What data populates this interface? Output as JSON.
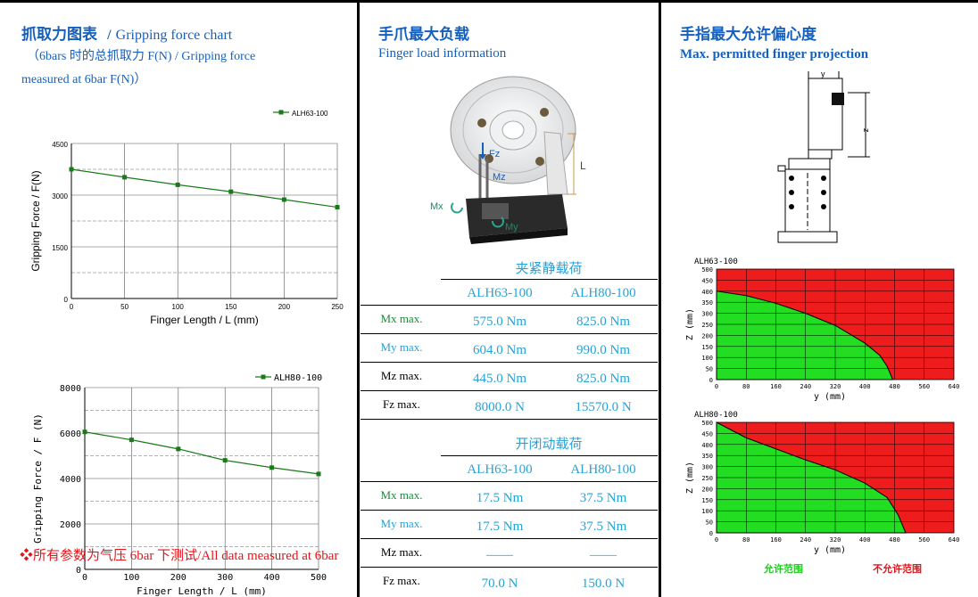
{
  "panel1": {
    "title_cn": "抓取力图表",
    "title_sep": "/",
    "title_en": "Gripping force chart",
    "subtitle_line1": "（6bars 时的总抓取力 F(N) / Gripping force",
    "subtitle_line2": "measured at 6bar F(N)）"
  },
  "panel2": {
    "title_cn": "手爪最大负载",
    "title_en": "Finger load information",
    "image_labels": {
      "fz": "Fz",
      "mz": "Mz",
      "mx": "Mx",
      "my": "My",
      "l": "L"
    },
    "static_title": "夹紧静载荷",
    "dynamic_title": "开闭动载荷",
    "col1": "ALH63-100",
    "col2": "ALH80-100",
    "static_rows": [
      {
        "label": "Mx max.",
        "v1": "575.0 Nm",
        "v2": "825.0 Nm"
      },
      {
        "label": "My max.",
        "v1": "604.0 Nm",
        "v2": "990.0 Nm"
      },
      {
        "label": "Mz max.",
        "v1": "445.0 Nm",
        "v2": "825.0 Nm"
      },
      {
        "label": "Fz max.",
        "v1": "8000.0 N",
        "v2": "15570.0 N"
      }
    ],
    "dynamic_rows": [
      {
        "label": "Mx max.",
        "v1": "17.5 Nm",
        "v2": "37.5 Nm"
      },
      {
        "label": "My max.",
        "v1": "17.5 Nm",
        "v2": "37.5 Nm"
      },
      {
        "label": "Mz max.",
        "v1": "——",
        "v2": "——"
      },
      {
        "label": "Fz max.",
        "v1": "70.0 N",
        "v2": "150.0 N"
      }
    ]
  },
  "panel3": {
    "title_cn": "手指最大允许偏心度",
    "title_en": "Max. permitted finger projection",
    "dim_y": "y",
    "dim_z": "z",
    "legend_ok": "允许范围",
    "legend_bad": "不允许范围"
  },
  "note": "❖所有参数为气压 6bar 下测试/All data measured at 6bar",
  "chart_data": [
    {
      "type": "line",
      "title": "",
      "xlabel": "Finger Length / L (mm)",
      "ylabel": "Gripping Force / F(N)",
      "xlim": [
        0,
        250
      ],
      "ylim": [
        0,
        4500
      ],
      "xticks": [
        0,
        50,
        100,
        150,
        200,
        250
      ],
      "yticks": [
        0,
        1500,
        3000,
        4500
      ],
      "legend_position": "top-right",
      "series": [
        {
          "name": "ALH63-100",
          "x": [
            0,
            50,
            100,
            150,
            200,
            250
          ],
          "y": [
            3750,
            3520,
            3300,
            3100,
            2870,
            2650
          ]
        }
      ]
    },
    {
      "type": "line",
      "title": "",
      "xlabel": "Finger Length / L (mm)",
      "ylabel": "Gripping Force / F (N)",
      "xlim": [
        0,
        500
      ],
      "ylim": [
        0,
        8000
      ],
      "xticks": [
        0,
        100,
        200,
        300,
        400,
        500
      ],
      "yticks": [
        0,
        2000,
        4000,
        6000,
        8000
      ],
      "legend_position": "top-right",
      "series": [
        {
          "name": "ALH80-100",
          "x": [
            0,
            100,
            200,
            300,
            400,
            500
          ],
          "y": [
            6050,
            5700,
            5300,
            4800,
            4480,
            4200
          ]
        }
      ]
    },
    {
      "type": "area",
      "title": "ALH63-100",
      "xlabel": "y (mm)",
      "ylabel": "Z (mm)",
      "xlim": [
        0,
        640
      ],
      "ylim": [
        0,
        500
      ],
      "xticks": [
        0,
        80,
        160,
        240,
        320,
        400,
        480,
        560,
        640
      ],
      "yticks": [
        0,
        50,
        100,
        150,
        200,
        250,
        300,
        350,
        400,
        450,
        500
      ],
      "series": [
        {
          "name": "允许范围",
          "x": [
            0,
            80,
            160,
            240,
            320,
            400,
            440,
            460,
            475
          ],
          "y": [
            400,
            380,
            345,
            300,
            245,
            165,
            110,
            60,
            0
          ]
        }
      ]
    },
    {
      "type": "area",
      "title": "ALH80-100",
      "xlabel": "y (mm)",
      "ylabel": "Z (mm)",
      "xlim": [
        0,
        640
      ],
      "ylim": [
        0,
        500
      ],
      "xticks": [
        0,
        80,
        160,
        240,
        320,
        400,
        480,
        560,
        640
      ],
      "yticks": [
        0,
        50,
        100,
        150,
        200,
        250,
        300,
        350,
        400,
        450,
        500
      ],
      "series": [
        {
          "name": "允许范围",
          "x": [
            0,
            80,
            160,
            240,
            320,
            400,
            460,
            490,
            510
          ],
          "y": [
            500,
            430,
            380,
            330,
            285,
            225,
            160,
            80,
            0
          ]
        }
      ]
    }
  ]
}
